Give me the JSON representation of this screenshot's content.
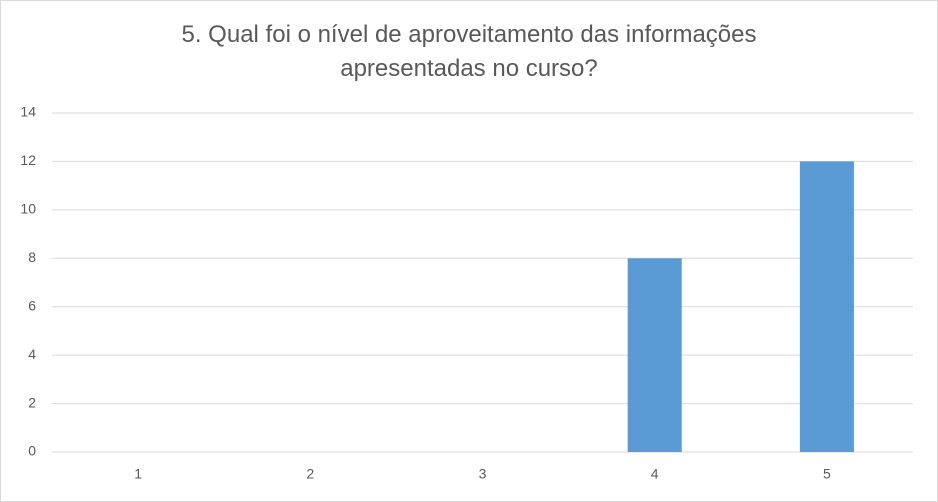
{
  "chart_data": {
    "type": "bar",
    "title": "5. Qual foi o nível de aproveitamento das informações apresentadas no curso?",
    "categories": [
      "1",
      "2",
      "3",
      "4",
      "5"
    ],
    "values": [
      0,
      0,
      0,
      8,
      12
    ],
    "color": "#5b9bd5",
    "ylim": [
      0,
      14
    ],
    "yticks": [
      0,
      2,
      4,
      6,
      8,
      10,
      12,
      14
    ],
    "grid": true
  }
}
